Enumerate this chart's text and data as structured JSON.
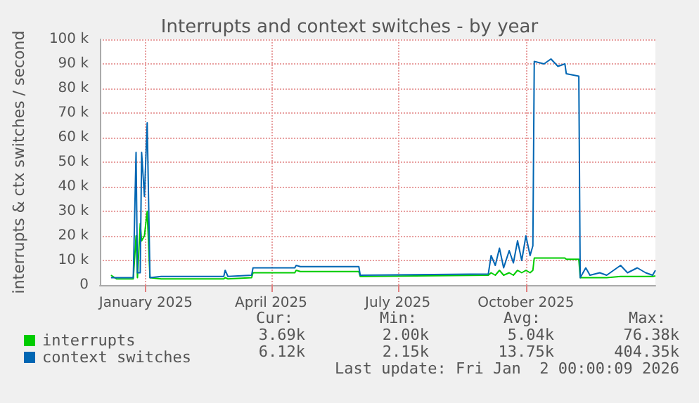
{
  "chart_data": {
    "type": "line",
    "title": "Interrupts and context switches - by year",
    "ylabel": "interrupts & ctx switches / second",
    "x": [
      "2024-12-07",
      "2024-12-11",
      "2024-12-23",
      "2024-12-25",
      "2024-12-26",
      "2024-12-28",
      "2024-12-29",
      "2024-12-31",
      "2025-01-02",
      "2025-01-04",
      "2025-01-12",
      "2025-02-26",
      "2025-02-27",
      "2025-03-01",
      "2025-03-18",
      "2025-03-19",
      "2025-04-18",
      "2025-04-19",
      "2025-04-22",
      "2025-06-03",
      "2025-06-04",
      "2025-09-04",
      "2025-09-06",
      "2025-09-09",
      "2025-09-12",
      "2025-09-15",
      "2025-09-19",
      "2025-09-22",
      "2025-09-25",
      "2025-09-28",
      "2025-10-01",
      "2025-10-04",
      "2025-10-06",
      "2025-10-07",
      "2025-10-14",
      "2025-10-19",
      "2025-10-24",
      "2025-10-29",
      "2025-10-30",
      "2025-11-08",
      "2025-11-09",
      "2025-11-13",
      "2025-11-16",
      "2025-11-23",
      "2025-11-28",
      "2025-12-08",
      "2025-12-13",
      "2025-12-20",
      "2025-12-26",
      "2025-12-31",
      "2026-01-02"
    ],
    "series": [
      {
        "name": "interrupts",
        "color": "#00cc00",
        "values": [
          4000,
          2500,
          2500,
          20000,
          3000,
          25000,
          18000,
          20000,
          30000,
          3000,
          2500,
          2500,
          3000,
          2500,
          3000,
          5000,
          5000,
          6000,
          5500,
          5500,
          3500,
          4000,
          5000,
          4000,
          6000,
          4000,
          5000,
          4000,
          6000,
          5000,
          6000,
          5000,
          6000,
          11000,
          11000,
          11000,
          11000,
          11000,
          10500,
          10500,
          3000,
          3000,
          3000,
          3000,
          3000,
          3500,
          3500,
          3500,
          3500,
          3500,
          3700
        ]
      },
      {
        "name": "context switches",
        "color": "#0066b3",
        "values": [
          3000,
          3000,
          3000,
          54000,
          5000,
          5000,
          54000,
          36000,
          66000,
          3000,
          3500,
          3500,
          6000,
          3500,
          4000,
          7000,
          7000,
          8000,
          7500,
          7500,
          4000,
          4500,
          12000,
          8000,
          15000,
          7000,
          14000,
          9000,
          18000,
          10000,
          20000,
          12000,
          16000,
          91000,
          90000,
          92000,
          89000,
          90000,
          86000,
          85000,
          3000,
          7000,
          4000,
          5000,
          4000,
          8000,
          5000,
          7000,
          5000,
          4000,
          6000
        ]
      }
    ],
    "xlim": [
      "2024-11-29",
      "2026-01-02"
    ],
    "xticks": [
      {
        "value": "2025-01-01",
        "label": "January 2025"
      },
      {
        "value": "2025-04-01",
        "label": "April 2025"
      },
      {
        "value": "2025-07-01",
        "label": "July 2025"
      },
      {
        "value": "2025-10-01",
        "label": "October 2025"
      }
    ],
    "ylim": [
      0,
      100000
    ],
    "yticks": [
      0,
      {
        "value": 10000,
        "label": "10 k"
      },
      {
        "value": 20000,
        "label": "20 k"
      },
      {
        "value": 30000,
        "label": "30 k"
      },
      {
        "value": 40000,
        "label": "40 k"
      },
      {
        "value": 50000,
        "label": "50 k"
      },
      {
        "value": 60000,
        "label": "60 k"
      },
      {
        "value": 70000,
        "label": "70 k"
      },
      {
        "value": 80000,
        "label": "80 k"
      },
      {
        "value": 90000,
        "label": "90 k"
      },
      {
        "value": 100000,
        "label": "100 k"
      }
    ],
    "grid": true,
    "legend": "bottom left",
    "marker": "none",
    "line_style": "solid",
    "annotations": [
      "Cur:",
      "Min:",
      "Avg:",
      "Max:",
      "3.69k",
      "2.00k",
      "5.04k",
      "76.38k",
      "6.12k",
      "2.15k",
      "13.75k",
      "404.35k",
      "Last update: Fri Jan  2 00:00:09 2026"
    ]
  }
}
